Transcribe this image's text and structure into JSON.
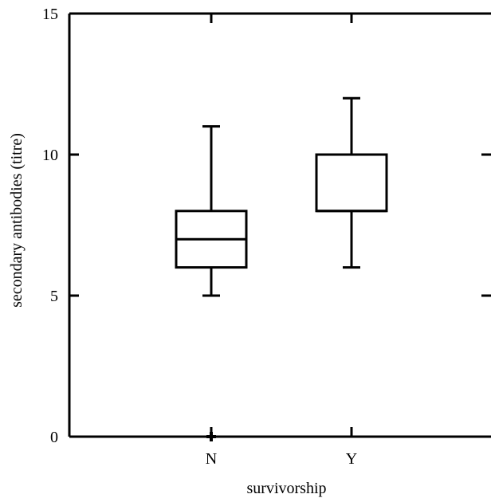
{
  "chart_data": {
    "type": "box",
    "xlabel": "survivorship",
    "ylabel": "secondary antibodies (titre)",
    "categories": [
      "N",
      "Y"
    ],
    "ylim": [
      0,
      15
    ],
    "y_ticks": [
      0,
      5,
      10,
      15
    ],
    "series": [
      {
        "category": "N",
        "whisker_low": 5,
        "q1": 6,
        "median": 7,
        "q3": 8,
        "whisker_high": 11,
        "outliers": [
          0
        ]
      },
      {
        "category": "Y",
        "whisker_low": 6,
        "q1": 8,
        "median": 8,
        "q3": 10,
        "whisker_high": 12,
        "outliers": []
      }
    ],
    "grid": false,
    "legend": "none"
  }
}
